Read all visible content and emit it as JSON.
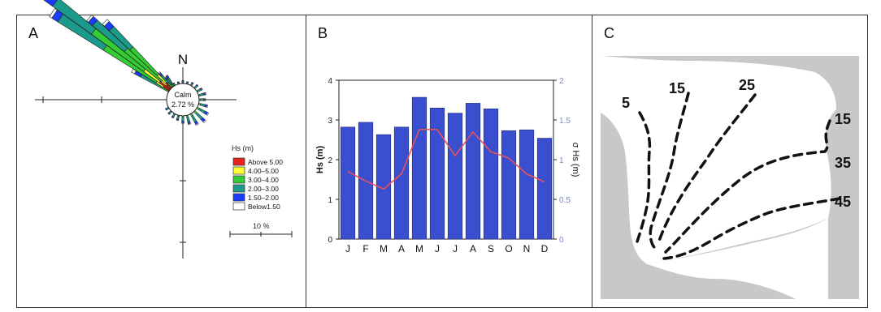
{
  "panels": {
    "a": {
      "label": "A"
    },
    "b": {
      "label": "B"
    },
    "c": {
      "label": "C"
    }
  },
  "chart_data": [
    {
      "type": "windrose",
      "north_label": "N",
      "calm_label": "Calm",
      "calm_value": "2.72 %",
      "legend_title": "Hs  (m)",
      "scale_label": "10 %",
      "classes": [
        {
          "label": "Above 5.00",
          "color": "#e8231d"
        },
        {
          "label": "4.00–5.00",
          "color": "#ffff33"
        },
        {
          "label": "3.00–4.00",
          "color": "#33cc33"
        },
        {
          "label": "2.00–3.00",
          "color": "#1a9a8a"
        },
        {
          "label": "1.50–2.00",
          "color": "#1a3cff"
        },
        {
          "label": "Below1.50",
          "color": "#ffffff"
        }
      ],
      "directions_deg": [
        300,
        303.75,
        307.5,
        311.25,
        315,
        318.75,
        322.5,
        326.25
      ],
      "frequency_percent": [
        7.2,
        24.1,
        27.4,
        18.5,
        16.1,
        3.4,
        2.1,
        2.2
      ]
    },
    {
      "type": "bar",
      "categories": [
        "J",
        "F",
        "M",
        "A",
        "M",
        "J",
        "J",
        "A",
        "S",
        "O",
        "N",
        "D"
      ],
      "series": [
        {
          "values": [
            2.82,
            2.94,
            2.63,
            2.82,
            3.57,
            3.3,
            3.17,
            3.42,
            3.28,
            2.73,
            2.75,
            2.54
          ],
          "color": "#3a4fcf"
        }
      ],
      "line_series": [
        {
          "values": [
            0.85,
            0.73,
            0.63,
            0.82,
            1.38,
            1.38,
            1.05,
            1.35,
            1.1,
            1.02,
            0.82,
            0.72
          ],
          "color": "#e8505a"
        }
      ],
      "ylabel": "Hs (m)",
      "y2label": "σ Hs (m)",
      "ylim": [
        0,
        4
      ],
      "y2lim": [
        0,
        2
      ],
      "yticks": [
        "0",
        "1",
        "2",
        "3",
        "4"
      ],
      "y2ticks": [
        "0",
        "0.5",
        "1",
        "1.5",
        "2"
      ]
    }
  ],
  "map": {
    "contour_labels": [
      "5",
      "15",
      "25",
      "15",
      "35",
      "45"
    ]
  }
}
